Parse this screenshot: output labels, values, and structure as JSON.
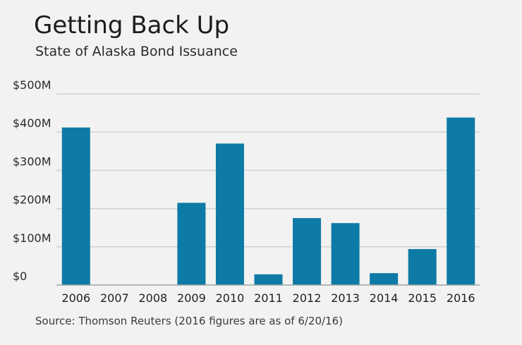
{
  "title": "Getting Back Up",
  "subtitle": "State of Alaska Bond Issuance",
  "source": "Source: Thomson Reuters (2016 figures are as of 6/20/16)",
  "colors": {
    "bar": "#0e7aa6",
    "grid": "#d0d3d4",
    "axis": "#9ea3a6",
    "background": "#f1f2f1"
  },
  "chart_data": {
    "type": "bar",
    "title": "Getting Back Up",
    "subtitle": "State of Alaska Bond Issuance",
    "categories": [
      "2006",
      "2007",
      "2008",
      "2009",
      "2010",
      "2011",
      "2012",
      "2013",
      "2014",
      "2015",
      "2016"
    ],
    "values": [
      412,
      0,
      0,
      215,
      370,
      28,
      175,
      162,
      31,
      94,
      438
    ],
    "unit": "$M",
    "ylim": [
      0,
      500
    ],
    "yticks": [
      0,
      100,
      200,
      300,
      400,
      500
    ],
    "ytick_labels": [
      "$0",
      "$100M",
      "$200M",
      "$300M",
      "$400M",
      "$500M"
    ],
    "grid": true,
    "legend": "none"
  }
}
